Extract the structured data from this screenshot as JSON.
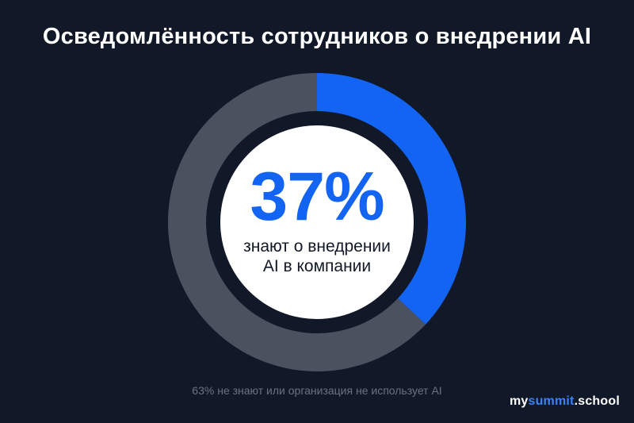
{
  "chart_data": {
    "type": "pie",
    "title": "Осведомлённость сотрудников о внедрении AI",
    "slices": [
      {
        "label": "знают о внедрении AI в компании",
        "value": 37,
        "color": "#1464f4"
      },
      {
        "label": "не знают или организация не использует AI",
        "value": 63,
        "color": "#4a5260"
      }
    ],
    "center_value": "37%",
    "center_label_line1": "знают о внедрении",
    "center_label_line2": "AI в компании",
    "footnote": "63% не знают или организация не использует AI"
  },
  "brand": {
    "prefix": "my",
    "accent": "summit",
    "suffix": ".school"
  },
  "colors": {
    "background": "#111827",
    "accent": "#1464f4",
    "track": "#4a5260",
    "center_fill": "#ffffff"
  }
}
